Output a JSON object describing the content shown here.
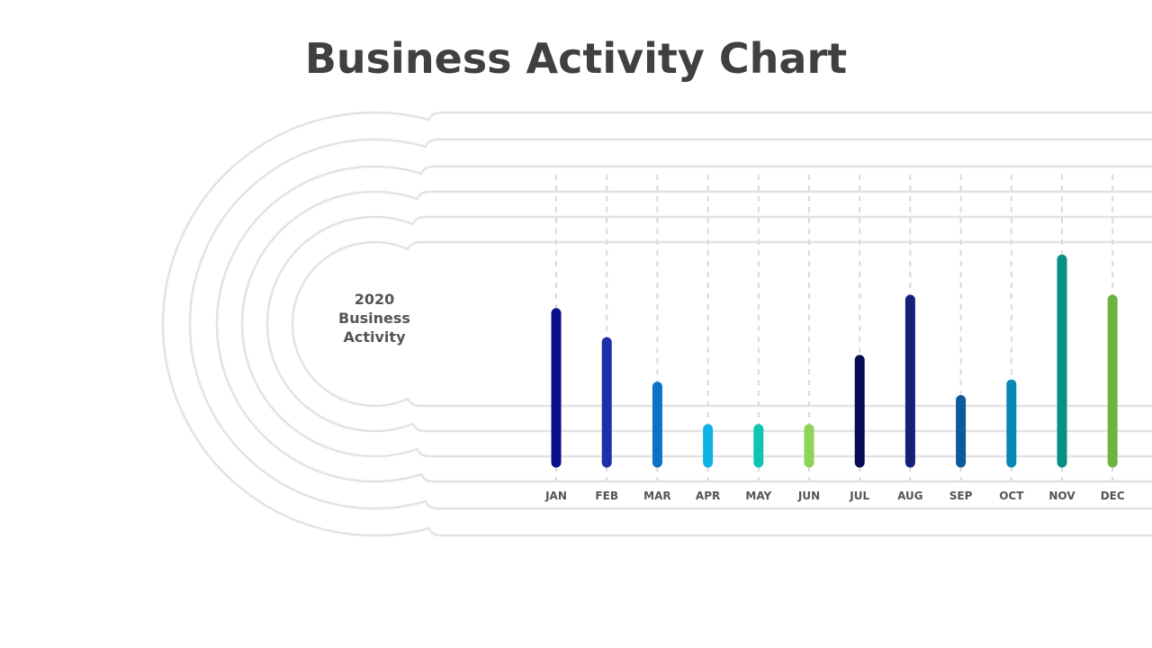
{
  "title": "Business Activity Chart",
  "center_label": {
    "line1": "2020",
    "line2": "Business",
    "line3": "Activity"
  },
  "chart_data": {
    "type": "bar",
    "title": "Business Activity Chart",
    "subtitle": "2020 Business Activity",
    "xlabel": "",
    "ylabel": "",
    "ylim": [
      0,
      10
    ],
    "grid": true,
    "legend": "none",
    "categories": [
      "JAN",
      "FEB",
      "MAR",
      "APR",
      "MAY",
      "JUN",
      "JUL",
      "AUG",
      "SEP",
      "OCT",
      "NOV",
      "DEC"
    ],
    "values": [
      6.7,
      5.4,
      3.4,
      1.5,
      1.5,
      1.5,
      4.6,
      7.3,
      2.8,
      3.5,
      9.1,
      7.3
    ],
    "colors": [
      "#0b0f8c",
      "#1f2fa8",
      "#0a72c8",
      "#10b2e6",
      "#10c4b2",
      "#8ed35a",
      "#070a55",
      "#13217a",
      "#0a5a9c",
      "#0788b5",
      "#078e85",
      "#6db33f"
    ]
  }
}
